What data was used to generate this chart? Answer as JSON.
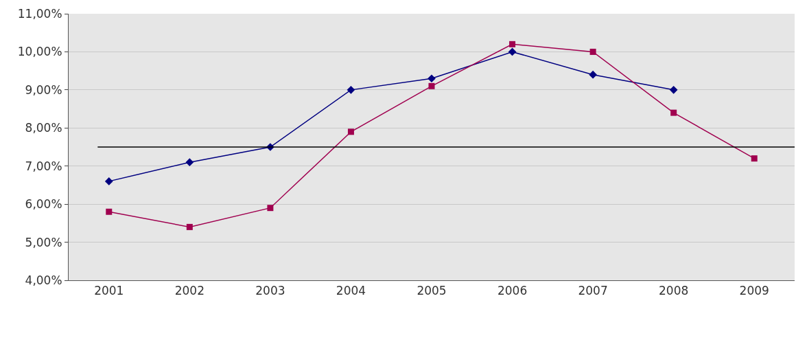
{
  "chart_data": {
    "type": "line",
    "categories": [
      "2001",
      "2002",
      "2003",
      "2004",
      "2005",
      "2006",
      "2007",
      "2008",
      "2009"
    ],
    "series": [
      {
        "color": "#000080",
        "marker": "diamond",
        "values": [
          6.6,
          7.1,
          7.5,
          9.0,
          9.3,
          10.0,
          9.4,
          9.0,
          null
        ]
      },
      {
        "color": "#a0004f",
        "marker": "square",
        "values": [
          5.8,
          5.4,
          5.9,
          7.9,
          9.1,
          10.2,
          10.0,
          8.4,
          7.2
        ]
      }
    ],
    "ylim": [
      4,
      11
    ],
    "yticks": [
      {
        "value": 4,
        "label": "4,00%"
      },
      {
        "value": 5,
        "label": "5,00%"
      },
      {
        "value": 6,
        "label": "6,00%"
      },
      {
        "value": 7,
        "label": "7,00%"
      },
      {
        "value": 8,
        "label": "8,00%"
      },
      {
        "value": 9,
        "label": "9,00%"
      },
      {
        "value": 10,
        "label": "10,00%"
      },
      {
        "value": 11,
        "label": "11,00%"
      }
    ],
    "ref_lines": [
      {
        "axis": "y",
        "value": 7.5,
        "color": "#000000"
      }
    ],
    "grid": "y"
  }
}
